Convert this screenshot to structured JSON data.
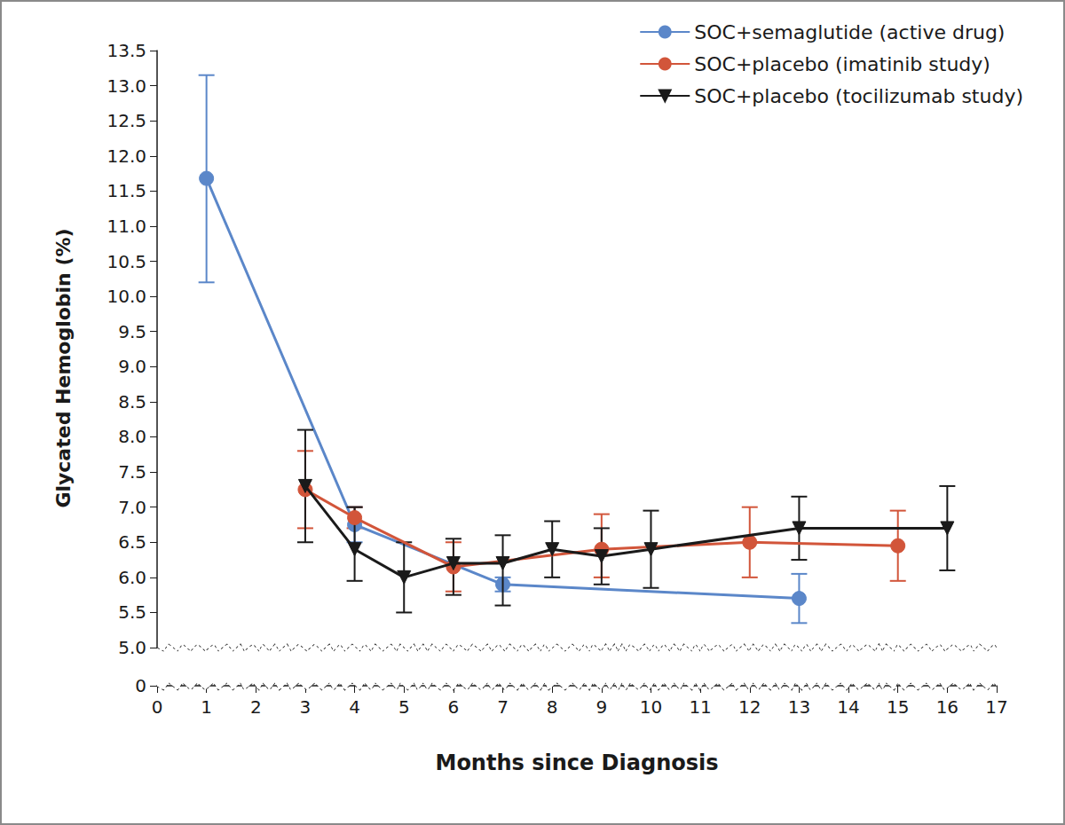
{
  "chart_data": {
    "type": "line",
    "x_label": "Months since Diagnosis",
    "y_label": "Glycated Hemoglobin (%)",
    "xlim": [
      0,
      17
    ],
    "xticks": [
      0,
      1,
      2,
      3,
      4,
      5,
      6,
      7,
      8,
      9,
      10,
      11,
      12,
      13,
      14,
      15,
      16,
      17
    ],
    "ylim": [
      0,
      13.5
    ],
    "y_break": [
      0,
      5
    ],
    "yticks": [
      0,
      {
        "value": 5,
        "label": "5.0"
      },
      5.5,
      {
        "value": 6,
        "label": "6.0"
      },
      6.5,
      {
        "value": 7,
        "label": "7.0"
      },
      7.5,
      {
        "value": 8,
        "label": "8.0"
      },
      8.5,
      {
        "value": 9,
        "label": "9.0"
      },
      9.5,
      {
        "value": 10,
        "label": "10.0"
      },
      10.5,
      {
        "value": 11,
        "label": "11.0"
      },
      11.5,
      {
        "value": 12,
        "label": "12.0"
      },
      12.5,
      {
        "value": 13,
        "label": "13.0"
      },
      13.5
    ],
    "grid": false,
    "legend": "upper right",
    "series": [
      {
        "name": "SOC+semaglutide (active drug)",
        "color": "#5b87c9",
        "marker": "circle",
        "x": [
          1,
          4,
          7,
          13
        ],
        "values": [
          11.68,
          6.75,
          5.9,
          5.7
        ],
        "error_low": [
          10.2,
          6.5,
          5.8,
          5.35
        ],
        "error_high": [
          13.15,
          7.0,
          6.0,
          6.05
        ]
      },
      {
        "name": "SOC+placebo (imatinib study)",
        "color": "#d2553a",
        "marker": "circle",
        "x": [
          3,
          4,
          6,
          9,
          12,
          15
        ],
        "values": [
          7.25,
          6.85,
          6.15,
          6.4,
          6.5,
          6.45
        ],
        "error_low": [
          6.7,
          6.7,
          5.8,
          6.0,
          6.0,
          5.95
        ],
        "error_high": [
          7.8,
          7.0,
          6.5,
          6.9,
          7.0,
          6.95
        ]
      },
      {
        "name": "SOC+placebo (tocilizumab study)",
        "color": "#1a1a1a",
        "marker": "triangle_down",
        "x": [
          3,
          4,
          5,
          6,
          7,
          8,
          9,
          10,
          13,
          16
        ],
        "values": [
          7.3,
          6.4,
          6.0,
          6.2,
          6.2,
          6.4,
          6.3,
          6.4,
          6.7,
          6.7
        ],
        "error_low": [
          6.5,
          5.95,
          5.5,
          5.75,
          5.6,
          6.0,
          5.9,
          5.85,
          6.25,
          6.1
        ],
        "error_high": [
          8.1,
          7.0,
          6.5,
          6.55,
          6.6,
          6.8,
          6.7,
          6.95,
          7.15,
          7.3
        ]
      }
    ]
  }
}
